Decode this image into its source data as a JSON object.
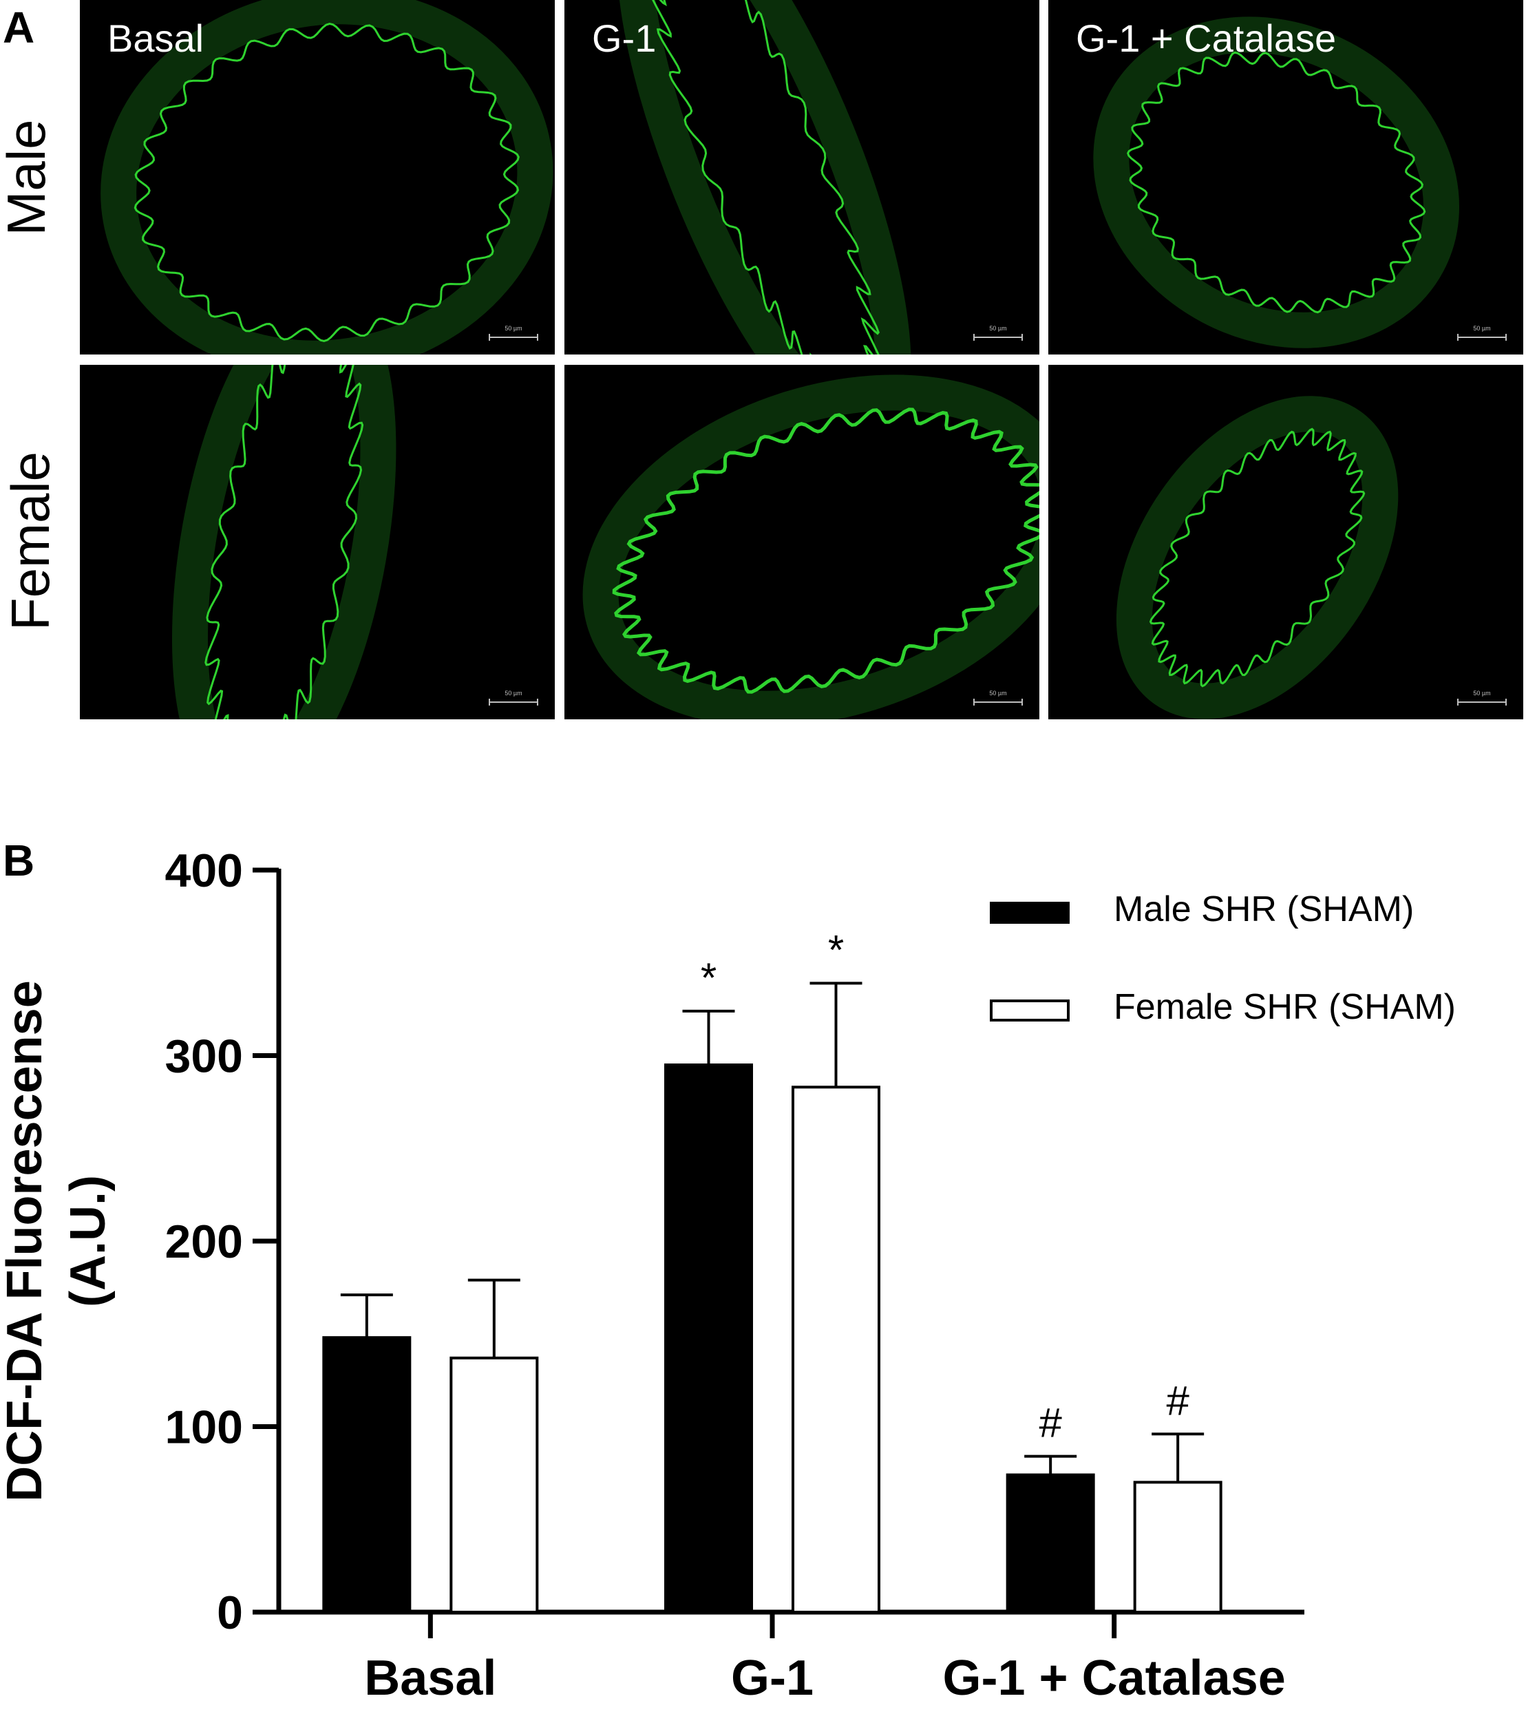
{
  "panel_a": {
    "letter": "A",
    "rows": [
      "Male",
      "Female"
    ],
    "columns": [
      "Basal",
      "G-1",
      "G-1 + Catalase"
    ],
    "scale_bar_label": "50 µm",
    "fluorescence_color": "#2fd22f"
  },
  "panel_b": {
    "letter": "B"
  },
  "chart_data": {
    "type": "bar",
    "ylabel_lines": [
      "DCF-DA Fluorescense",
      "(A.U.)"
    ],
    "categories": [
      "Basal",
      "G-1",
      "G-1 + Catalase"
    ],
    "ylim": [
      0,
      400
    ],
    "yticks": [
      0,
      100,
      200,
      300,
      400
    ],
    "series": [
      {
        "name": "Male SHR (SHAM)",
        "fill": "#000000",
        "values": [
          148,
          295,
          74
        ],
        "errors": [
          23,
          29,
          10
        ]
      },
      {
        "name": "Female SHR (SHAM)",
        "fill": "#ffffff",
        "values": [
          137,
          283,
          70
        ],
        "errors": [
          42,
          56,
          26
        ]
      }
    ],
    "annotations": [
      {
        "category": "G-1",
        "series": "Male SHR (SHAM)",
        "text": "*"
      },
      {
        "category": "G-1",
        "series": "Female SHR (SHAM)",
        "text": "*"
      },
      {
        "category": "G-1 + Catalase",
        "series": "Male SHR (SHAM)",
        "text": "#"
      },
      {
        "category": "G-1 + Catalase",
        "series": "Female SHR (SHAM)",
        "text": "#"
      }
    ],
    "legend_position": "top-right",
    "grid": false
  }
}
